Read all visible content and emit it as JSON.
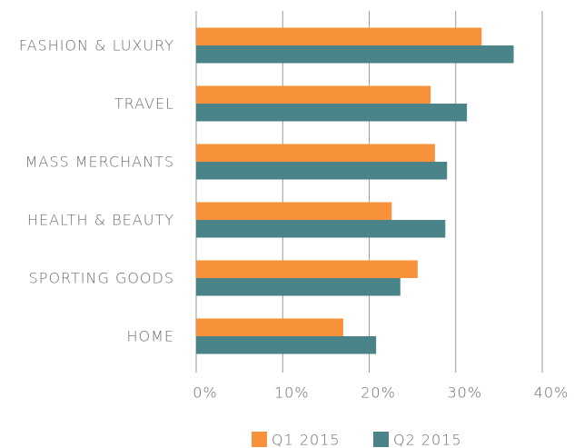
{
  "chart_data": {
    "type": "hbar",
    "categories": [
      "FASHION & LUXURY",
      "TRAVEL",
      "MASS MERCHANTS",
      "HEALTH & BEAUTY",
      "SPORTING GOODS",
      "HOME"
    ],
    "series": [
      {
        "name": "Q1 2015",
        "color": "#f7923a",
        "values": [
          33,
          27.1,
          27.6,
          22.6,
          25.6,
          17.0
        ]
      },
      {
        "name": "Q2 2015",
        "color": "#4a8489",
        "values": [
          36.7,
          31.3,
          29.0,
          28.8,
          23.6,
          20.8
        ]
      }
    ],
    "xlim": [
      0,
      40
    ],
    "xticks": [
      {
        "value": 0,
        "label": "0%"
      },
      {
        "value": 10,
        "label": "10%"
      },
      {
        "value": 20,
        "label": "20%"
      },
      {
        "value": 30,
        "label": "30%"
      },
      {
        "value": 40,
        "label": "40%"
      }
    ],
    "grid": true,
    "legend": "bottom"
  }
}
